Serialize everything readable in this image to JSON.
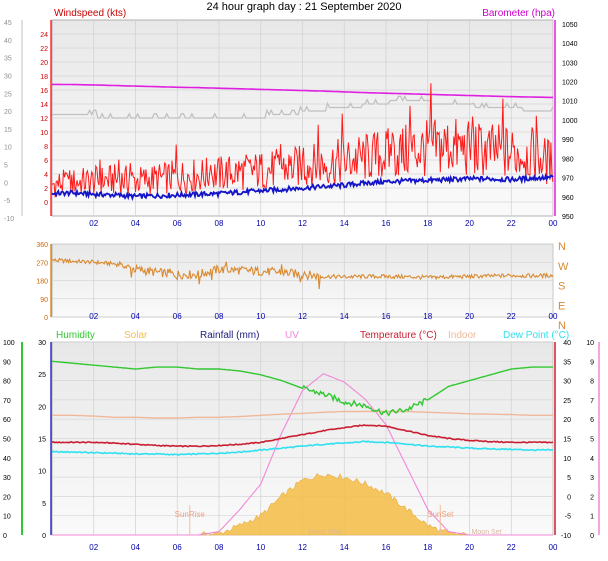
{
  "page_title": "24 hour graph day : 21 September 2020",
  "time_ticks": [
    "02",
    "04",
    "06",
    "08",
    "10",
    "12",
    "14",
    "16",
    "18",
    "20",
    "22",
    "00"
  ],
  "colors": {
    "wind_speed": "#ff1a1a",
    "wind_avg": "#1414c8",
    "gust": "#c0c0c0",
    "barometer": "#e020e0",
    "direction": "#d98a30",
    "humidity": "#30c830",
    "solar": "#f5c050",
    "rain": "#202080",
    "uv": "#f088d8",
    "temperature": "#c81e32",
    "indoor": "#f0b89a",
    "dewpoint": "#30e0f0",
    "panel_top": "#e8e8e8",
    "panel_bottom": "#fafafa"
  },
  "chart_data": [
    {
      "type": "line",
      "title": "24 hour graph day : 21 September 2020",
      "left_axis_label": "Windspeed (kts)",
      "right_axis_label": "Barometer (hpa)",
      "left_ticks": [
        "-10",
        "-5",
        "0",
        "5",
        "10",
        "15",
        "20",
        "25",
        "30",
        "35",
        "40",
        "45"
      ],
      "left_inner_ticks": [
        "0",
        "2",
        "4",
        "6",
        "8",
        "10",
        "12",
        "14",
        "16",
        "18",
        "20",
        "22",
        "24"
      ],
      "right_ticks": [
        "950",
        "960",
        "970",
        "980",
        "990",
        "1000",
        "1010",
        "1020",
        "1030",
        "1040",
        "1050"
      ],
      "left_inner_range": [
        -2,
        26
      ],
      "right_range": [
        950,
        1052
      ],
      "x_hours": [
        0,
        1,
        2,
        3,
        4,
        5,
        6,
        7,
        8,
        9,
        10,
        11,
        12,
        13,
        14,
        15,
        16,
        17,
        18,
        19,
        20,
        21,
        22,
        23,
        24
      ],
      "series": [
        {
          "key": "wind_speed",
          "values": [
            2.5,
            2.8,
            3.0,
            3.2,
            3.0,
            3.3,
            3.6,
            3.8,
            4.0,
            4.3,
            4.5,
            4.8,
            5.1,
            5.4,
            5.8,
            6.3,
            6.8,
            7.2,
            7.6,
            8.0,
            7.5,
            7.3,
            7.0,
            6.8,
            5.5
          ]
        },
        {
          "key": "wind_avg",
          "values": [
            1.2,
            1.3,
            1.1,
            1.0,
            0.8,
            0.9,
            1.0,
            1.1,
            1.2,
            1.4,
            1.6,
            1.8,
            2.0,
            2.2,
            2.4,
            2.7,
            2.9,
            3.0,
            3.1,
            3.2,
            3.3,
            3.3,
            3.2,
            3.4,
            3.5
          ]
        },
        {
          "key": "gust",
          "values": [
            12.5,
            12.5,
            12.3,
            12.0,
            11.8,
            11.8,
            11.8,
            11.8,
            11.9,
            12.0,
            12.2,
            12.4,
            12.8,
            13.2,
            13.5,
            13.8,
            14.2,
            14.5,
            14.3,
            14.0,
            13.8,
            13.5,
            13.3,
            13.2,
            13.0
          ]
        },
        {
          "key": "barometer",
          "values": [
            1018.5,
            1018.4,
            1018.2,
            1017.9,
            1017.6,
            1017.3,
            1017.0,
            1016.8,
            1016.5,
            1016.2,
            1015.9,
            1015.6,
            1015.3,
            1015.0,
            1014.6,
            1014.2,
            1013.9,
            1013.6,
            1013.3,
            1013.0,
            1012.7,
            1012.4,
            1012.1,
            1011.9,
            1011.7
          ]
        }
      ]
    },
    {
      "type": "line",
      "ticks_left": [
        "0",
        "90",
        "180",
        "270",
        "360"
      ],
      "compass_labels": [
        "N",
        "W",
        "S",
        "E",
        "N"
      ],
      "range": [
        0,
        360
      ],
      "x_hours": [
        0,
        1,
        2,
        3,
        4,
        5,
        6,
        7,
        8,
        9,
        10,
        11,
        12,
        13,
        14,
        15,
        16,
        17,
        18,
        19,
        20,
        21,
        22,
        23,
        24
      ],
      "series": [
        {
          "key": "direction",
          "values": [
            280,
            275,
            270,
            262,
            235,
            220,
            210,
            210,
            235,
            230,
            225,
            220,
            210,
            200,
            198,
            200,
            200,
            198,
            195,
            198,
            200,
            202,
            205,
            203,
            205
          ]
        }
      ]
    },
    {
      "type": "line",
      "legend": [
        {
          "label": "Humidity",
          "key": "humidity"
        },
        {
          "label": "Solar",
          "key": "solar"
        },
        {
          "label": "Rainfall (mm)",
          "key": "rain"
        },
        {
          "label": "UV",
          "key": "uv"
        },
        {
          "label": "Temperature (°C)",
          "key": "temperature"
        },
        {
          "label": "Indoor",
          "key": "indoor"
        },
        {
          "label": "Dew Point (°C)",
          "key": "dewpoint"
        }
      ],
      "humidity_ticks": [
        "0",
        "10",
        "20",
        "30",
        "40",
        "50",
        "60",
        "70",
        "80",
        "90",
        "100"
      ],
      "solar_ticks": [
        "0",
        "5",
        "10",
        "15",
        "20",
        "25",
        "30"
      ],
      "temp_ticks": [
        "-10",
        "-5",
        "0",
        "5",
        "10",
        "15",
        "20",
        "25",
        "30",
        "35",
        "40"
      ],
      "uv_ticks": [
        "0",
        "1",
        "2",
        "3",
        "4",
        "5",
        "6",
        "7",
        "8",
        "9",
        "10"
      ],
      "temp_range": [
        -10,
        40
      ],
      "humidity_range": [
        0,
        100
      ],
      "sun_labels": {
        "sunrise": "SunRise",
        "sunset": "SunSet",
        "moon1": "Moon Rise",
        "moon2": "Moon Set"
      },
      "x_hours": [
        0,
        1,
        2,
        3,
        4,
        5,
        6,
        7,
        8,
        9,
        10,
        11,
        12,
        13,
        14,
        15,
        16,
        17,
        18,
        19,
        20,
        21,
        22,
        23,
        24
      ],
      "series": [
        {
          "key": "humidity",
          "values": [
            90,
            89,
            88,
            87,
            86,
            87,
            87,
            86,
            86,
            85,
            83,
            80,
            76,
            73,
            69,
            67,
            63,
            65,
            70,
            77,
            80,
            83,
            86,
            87,
            87
          ]
        },
        {
          "key": "temperature",
          "values": [
            14,
            14,
            14,
            13.8,
            13.5,
            13.2,
            13,
            13,
            13.2,
            13.5,
            14,
            15,
            16,
            17,
            17.8,
            18.5,
            18.2,
            17,
            15.8,
            15,
            14.5,
            14.2,
            14,
            14,
            14
          ]
        },
        {
          "key": "dewpoint",
          "values": [
            11.5,
            11.5,
            11.3,
            11.2,
            11,
            11,
            10.8,
            11,
            11.2,
            11.5,
            12,
            12.5,
            13,
            13.5,
            13.8,
            14.2,
            14,
            13.6,
            13,
            12.8,
            12.5,
            12.3,
            12.2,
            12.0,
            12
          ]
        },
        {
          "key": "indoor",
          "values": [
            21,
            21,
            20.8,
            20.5,
            20.5,
            20.3,
            20.3,
            20.5,
            20.5,
            20.7,
            21,
            21.3,
            21.5,
            21.8,
            22,
            22,
            22,
            22,
            21.8,
            21.6,
            21.4,
            21.3,
            21.2,
            21,
            21
          ]
        },
        {
          "key": "solar",
          "values": [
            0,
            0,
            0,
            0,
            0,
            0,
            0,
            0,
            0.2,
            1.5,
            3,
            6,
            8.5,
            9.5,
            9,
            8,
            6.5,
            4,
            1.5,
            0.2,
            0,
            0,
            0,
            0,
            0
          ]
        }
      ]
    }
  ]
}
